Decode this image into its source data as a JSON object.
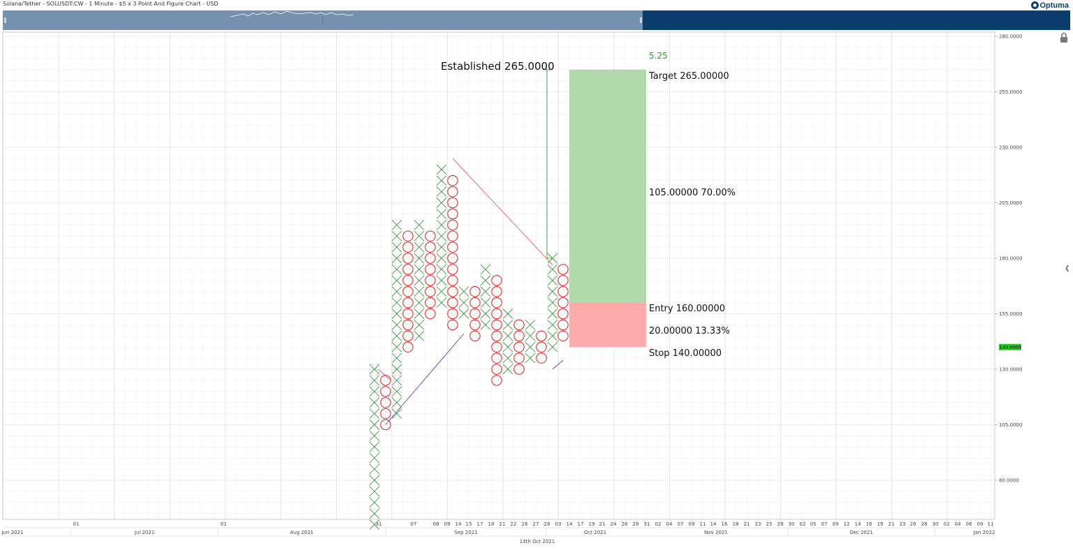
{
  "header": {
    "title": "Solana/Tether - SOLUSDT:CW - 1 Minute - $5 x 3 Point And Figure Chart - USD",
    "brand": "Optuma"
  },
  "colors": {
    "x_mark": "#3a9a3a",
    "o_mark": "#e01b1b",
    "trend_down": "#ee5555",
    "trend_up": "#4444cc",
    "target_fill": "#b0d8ab",
    "stop_fill": "#ffabab",
    "price_badge": "#22cc22",
    "navigator_window": "#7591ad",
    "navigator_rest": "#0a3d6e"
  },
  "price_badge": {
    "value": "140.0000",
    "price": 140
  },
  "annotations": {
    "established": "Established 265.0000",
    "ratio": "5.25",
    "target": "Target   265.00000",
    "reward": "105.00000   70.00%",
    "entry": "Entry   160.00000",
    "risk": "20.00000   13.33%",
    "stop": "Stop   140.00000"
  },
  "chart_data": {
    "type": "point_and_figure",
    "box_size": 5,
    "reversal": 3,
    "y_axis": {
      "ticks": [
        80,
        105,
        130,
        155,
        180,
        205,
        230,
        255,
        280
      ],
      "tick_labels": [
        "80.0000",
        "105.0000",
        "130.0000",
        "155.0000",
        "180.0000",
        "205.0000",
        "230.0000",
        "255.0000",
        "280.0000"
      ]
    },
    "columns": [
      {
        "date": "Aug 31",
        "type": "X",
        "low": 60,
        "high": 130
      },
      {
        "date": "Sep 01",
        "type": "O",
        "low": 105,
        "high": 125
      },
      {
        "date": "Sep 02",
        "type": "X",
        "low": 110,
        "high": 195
      },
      {
        "date": "Sep 06",
        "type": "O",
        "low": 140,
        "high": 190
      },
      {
        "date": "Sep 07",
        "type": "X",
        "low": 145,
        "high": 195
      },
      {
        "date": "Sep 07",
        "type": "O",
        "low": 155,
        "high": 190
      },
      {
        "date": "Sep 08",
        "type": "X",
        "low": 160,
        "high": 220
      },
      {
        "date": "Sep 09",
        "type": "O",
        "low": 150,
        "high": 215
      },
      {
        "date": "Sep 13",
        "type": "X",
        "low": 155,
        "high": 165
      },
      {
        "date": "Sep 14",
        "type": "O",
        "low": 145,
        "high": 165
      },
      {
        "date": "Sep 16",
        "type": "X",
        "low": 150,
        "high": 175
      },
      {
        "date": "Sep 18",
        "type": "O",
        "low": 125,
        "high": 170
      },
      {
        "date": "Sep 21",
        "type": "X",
        "low": 130,
        "high": 155
      },
      {
        "date": "Sep 22",
        "type": "O",
        "low": 130,
        "high": 150
      },
      {
        "date": "Sep 24",
        "type": "X",
        "low": 135,
        "high": 150
      },
      {
        "date": "Sep 27",
        "type": "O",
        "low": 135,
        "high": 145
      },
      {
        "date": "Sep 28",
        "type": "X",
        "low": 140,
        "high": 180
      },
      {
        "date": "Oct 03",
        "type": "O",
        "low": 145,
        "high": 175
      }
    ],
    "trend_lines": [
      {
        "kind": "resistance",
        "from": {
          "date": "Sep 09",
          "price": 225
        },
        "to": {
          "date": "Sep 28",
          "price": 177
        }
      },
      {
        "kind": "support",
        "from": {
          "date": "Sep 01",
          "price": 105
        },
        "to": {
          "date": "Sep 13",
          "price": 146
        }
      },
      {
        "kind": "support",
        "from": {
          "date": "Sep 28",
          "price": 130
        },
        "to": {
          "date": "Oct 03",
          "price": 134
        }
      }
    ],
    "count_line": {
      "from_price": 180,
      "to_price": 265,
      "established": 265
    },
    "risk_reward": {
      "entry": 160,
      "stop": 140,
      "target": 265,
      "reward": 105,
      "reward_pct": 70.0,
      "risk": 20,
      "risk_pct": 13.33,
      "ratio": 5.25
    },
    "x_axis": {
      "day_labels": [
        "01",
        "01",
        "31",
        "07",
        "08",
        "09",
        "14",
        "15",
        "17",
        "18",
        "21",
        "22",
        "26",
        "27",
        "28",
        "03",
        "14",
        "17",
        "19",
        "21",
        "24",
        "26",
        "28",
        "31",
        "02",
        "04",
        "07",
        "09",
        "11",
        "14",
        "16",
        "18",
        "21",
        "23",
        "25",
        "28",
        "30",
        "02",
        "05",
        "07",
        "09",
        "12",
        "14",
        "16",
        "19",
        "21",
        "23",
        "26",
        "28",
        "30",
        "02",
        "04",
        "06",
        "09",
        "11"
      ],
      "month_labels": [
        "Jun 2021",
        "Jul 2021",
        "Aug 2021",
        "Sep 2021",
        "Oct 2021",
        "Nov 2021",
        "Dec 2021",
        "Jan 2022"
      ],
      "cursor_date": "13th Oct 2021"
    }
  }
}
